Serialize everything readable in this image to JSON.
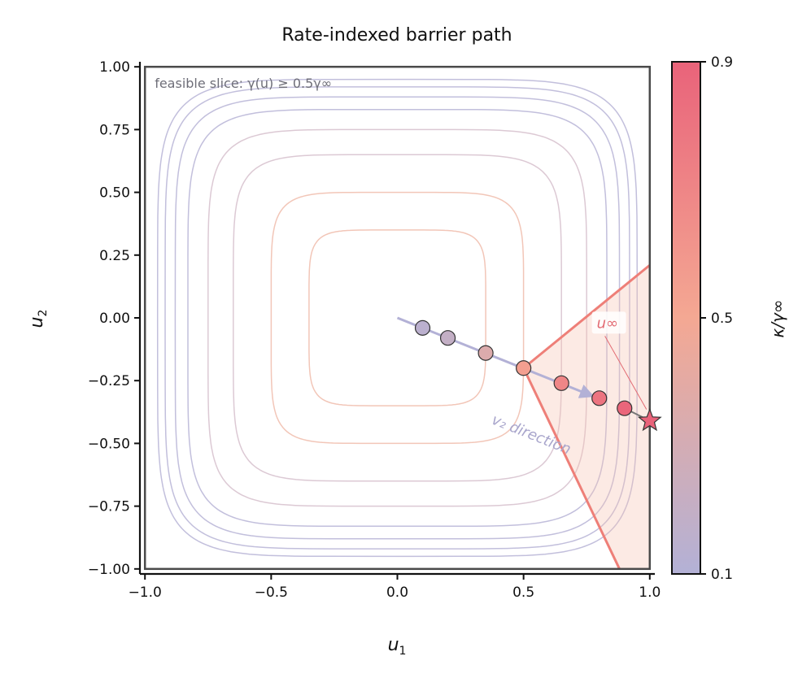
{
  "chart_data": {
    "type": "line",
    "title": "Rate-indexed barrier path",
    "xlabel": {
      "base": "u",
      "sub": "1"
    },
    "ylabel": {
      "base": "u",
      "sub": "2"
    },
    "xlim": [
      -1.02,
      1.02
    ],
    "ylim": [
      -1.02,
      1.02
    ],
    "xticks": [
      -1.0,
      -0.5,
      0.0,
      0.5,
      1.0
    ],
    "xtick_labels": [
      "−1.0",
      "−0.5",
      "0.0",
      "0.5",
      "1.0"
    ],
    "yticks": [
      1.0,
      0.75,
      0.5,
      0.25,
      0.0,
      -0.25,
      -0.5,
      -0.75,
      -1.0
    ],
    "ytick_labels": [
      "1.00",
      "0.75",
      "0.50",
      "0.25",
      "0.00",
      "−0.25",
      "−0.50",
      "−0.75",
      "−1.00"
    ],
    "grid": false,
    "box": {
      "x": [
        -1.0,
        1.0
      ],
      "y": [
        -1.0,
        1.0
      ]
    },
    "feasible_annotation": "feasible slice: γ(u) ≥ 0.5γ∞",
    "contour_levels": [
      0.35,
      0.5,
      0.65,
      0.75,
      0.83,
      0.88,
      0.92,
      0.95
    ],
    "contour_exponent": 6,
    "feasible_region": [
      [
        0.5,
        -0.2
      ],
      [
        1.0,
        0.21
      ],
      [
        1.0,
        -1.0
      ],
      [
        0.88,
        -1.0
      ]
    ],
    "path_points": {
      "x": [
        0.1,
        0.2,
        0.35,
        0.5,
        0.65,
        0.8,
        0.9
      ],
      "y": [
        -0.04,
        -0.08,
        -0.14,
        -0.2,
        -0.26,
        -0.32,
        -0.36
      ],
      "kappa": [
        0.15,
        0.2,
        0.35,
        0.55,
        0.7,
        0.8,
        0.88
      ]
    },
    "direction_arrow": {
      "from": [
        0.0,
        0.0
      ],
      "to": [
        0.77,
        -0.31
      ],
      "label": "v₂ direction"
    },
    "u_inf": {
      "x": 1.0,
      "y": -0.41,
      "label": "u∞",
      "label_pos": [
        0.79,
        -0.04
      ]
    },
    "colorbar": {
      "label": "κ/γ∞",
      "range": [
        0.1,
        0.9
      ],
      "ticks": [
        0.1,
        0.5,
        0.9
      ],
      "tick_labels": [
        "0.1",
        "0.5",
        "0.9"
      ],
      "colors": [
        "#b3b1d6",
        "#f4a893",
        "#e9637a"
      ]
    }
  }
}
